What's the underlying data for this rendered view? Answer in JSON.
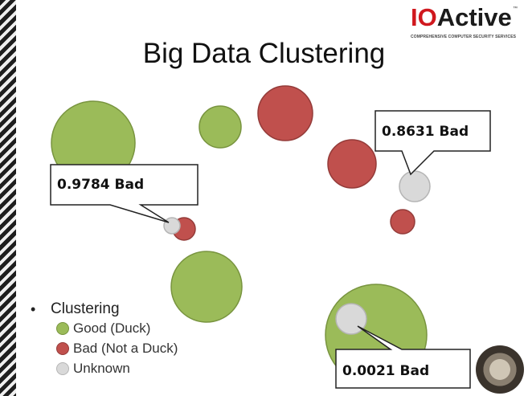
{
  "slide": {
    "title": "Big Data Clustering"
  },
  "logo": {
    "brand_part1": "IO",
    "brand_part2": "Active",
    "trademark": "™",
    "tagline": "COMPREHENSIVE COMPUTER SECURITY SERVICES"
  },
  "colors": {
    "good": "#9bbb59",
    "bad": "#c0504d",
    "unknown": "#d9d9d9"
  },
  "legend": {
    "heading": "Clustering",
    "items": [
      {
        "label": "Good (Duck)",
        "type": "good"
      },
      {
        "label": "Bad (Not a Duck)",
        "type": "bad"
      },
      {
        "label": "Unknown",
        "type": "unknown"
      }
    ]
  },
  "callouts": [
    {
      "text": "0.9784 Bad"
    },
    {
      "text": "0.8631 Bad"
    },
    {
      "text": "0.0021 Bad"
    }
  ]
}
